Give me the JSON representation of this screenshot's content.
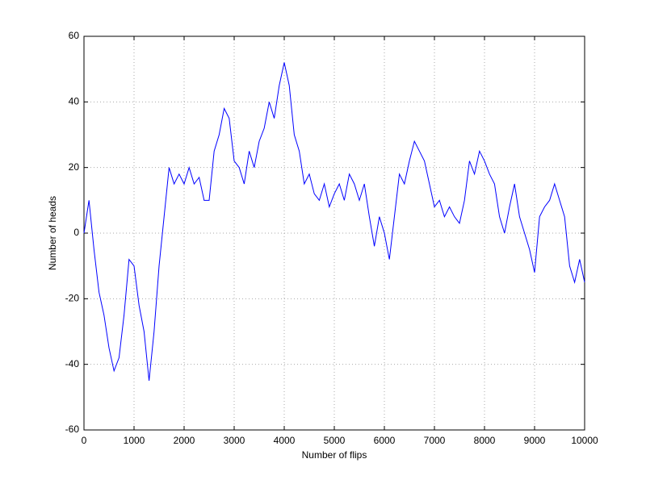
{
  "chart_data": {
    "type": "line",
    "xlabel": "Number of flips",
    "ylabel": "Number of heads",
    "x": [
      0,
      100,
      200,
      300,
      400,
      500,
      600,
      700,
      800,
      900,
      1000,
      1100,
      1200,
      1300,
      1400,
      1500,
      1600,
      1700,
      1800,
      1900,
      2000,
      2100,
      2200,
      2300,
      2400,
      2500,
      2600,
      2700,
      2800,
      2900,
      3000,
      3100,
      3200,
      3300,
      3400,
      3500,
      3600,
      3700,
      3800,
      3900,
      4000,
      4100,
      4200,
      4300,
      4400,
      4500,
      4600,
      4700,
      4800,
      4900,
      5000,
      5100,
      5200,
      5300,
      5400,
      5500,
      5600,
      5700,
      5800,
      5900,
      6000,
      6100,
      6200,
      6300,
      6400,
      6500,
      6600,
      6700,
      6800,
      6900,
      7000,
      7100,
      7200,
      7300,
      7400,
      7500,
      7600,
      7700,
      7800,
      7900,
      8000,
      8100,
      8200,
      8300,
      8400,
      8500,
      8600,
      8700,
      8800,
      8900,
      9000,
      9100,
      9200,
      9300,
      9400,
      9500,
      9600,
      9700,
      9800,
      9900,
      10000
    ],
    "series": [
      {
        "color": "#0000ff",
        "values": [
          0,
          10,
          -5,
          -18,
          -25,
          -35,
          -42,
          -38,
          -25,
          -8,
          -10,
          -22,
          -30,
          -45,
          -30,
          -10,
          5,
          20,
          15,
          18,
          15,
          20,
          15,
          17,
          10,
          10,
          25,
          30,
          38,
          35,
          22,
          20,
          15,
          25,
          20,
          28,
          32,
          40,
          35,
          45,
          52,
          45,
          30,
          25,
          15,
          18,
          12,
          10,
          15,
          8,
          12,
          15,
          10,
          18,
          15,
          10,
          15,
          5,
          -4,
          5,
          0,
          -8,
          5,
          18,
          15,
          22,
          28,
          25,
          22,
          15,
          8,
          10,
          5,
          8,
          5,
          3,
          10,
          22,
          18,
          25,
          22,
          18,
          15,
          5,
          0,
          8,
          15,
          5,
          0,
          -5,
          -12,
          5,
          8,
          10,
          15,
          10,
          5,
          -10,
          -15,
          -8,
          -15
        ]
      }
    ],
    "xlim": [
      0,
      10000
    ],
    "ylim": [
      -60,
      60
    ],
    "xticks": [
      0,
      1000,
      2000,
      3000,
      4000,
      5000,
      6000,
      7000,
      8000,
      9000,
      10000
    ],
    "yticks": [
      -60,
      -40,
      -20,
      0,
      20,
      40,
      60
    ],
    "grid": true
  }
}
